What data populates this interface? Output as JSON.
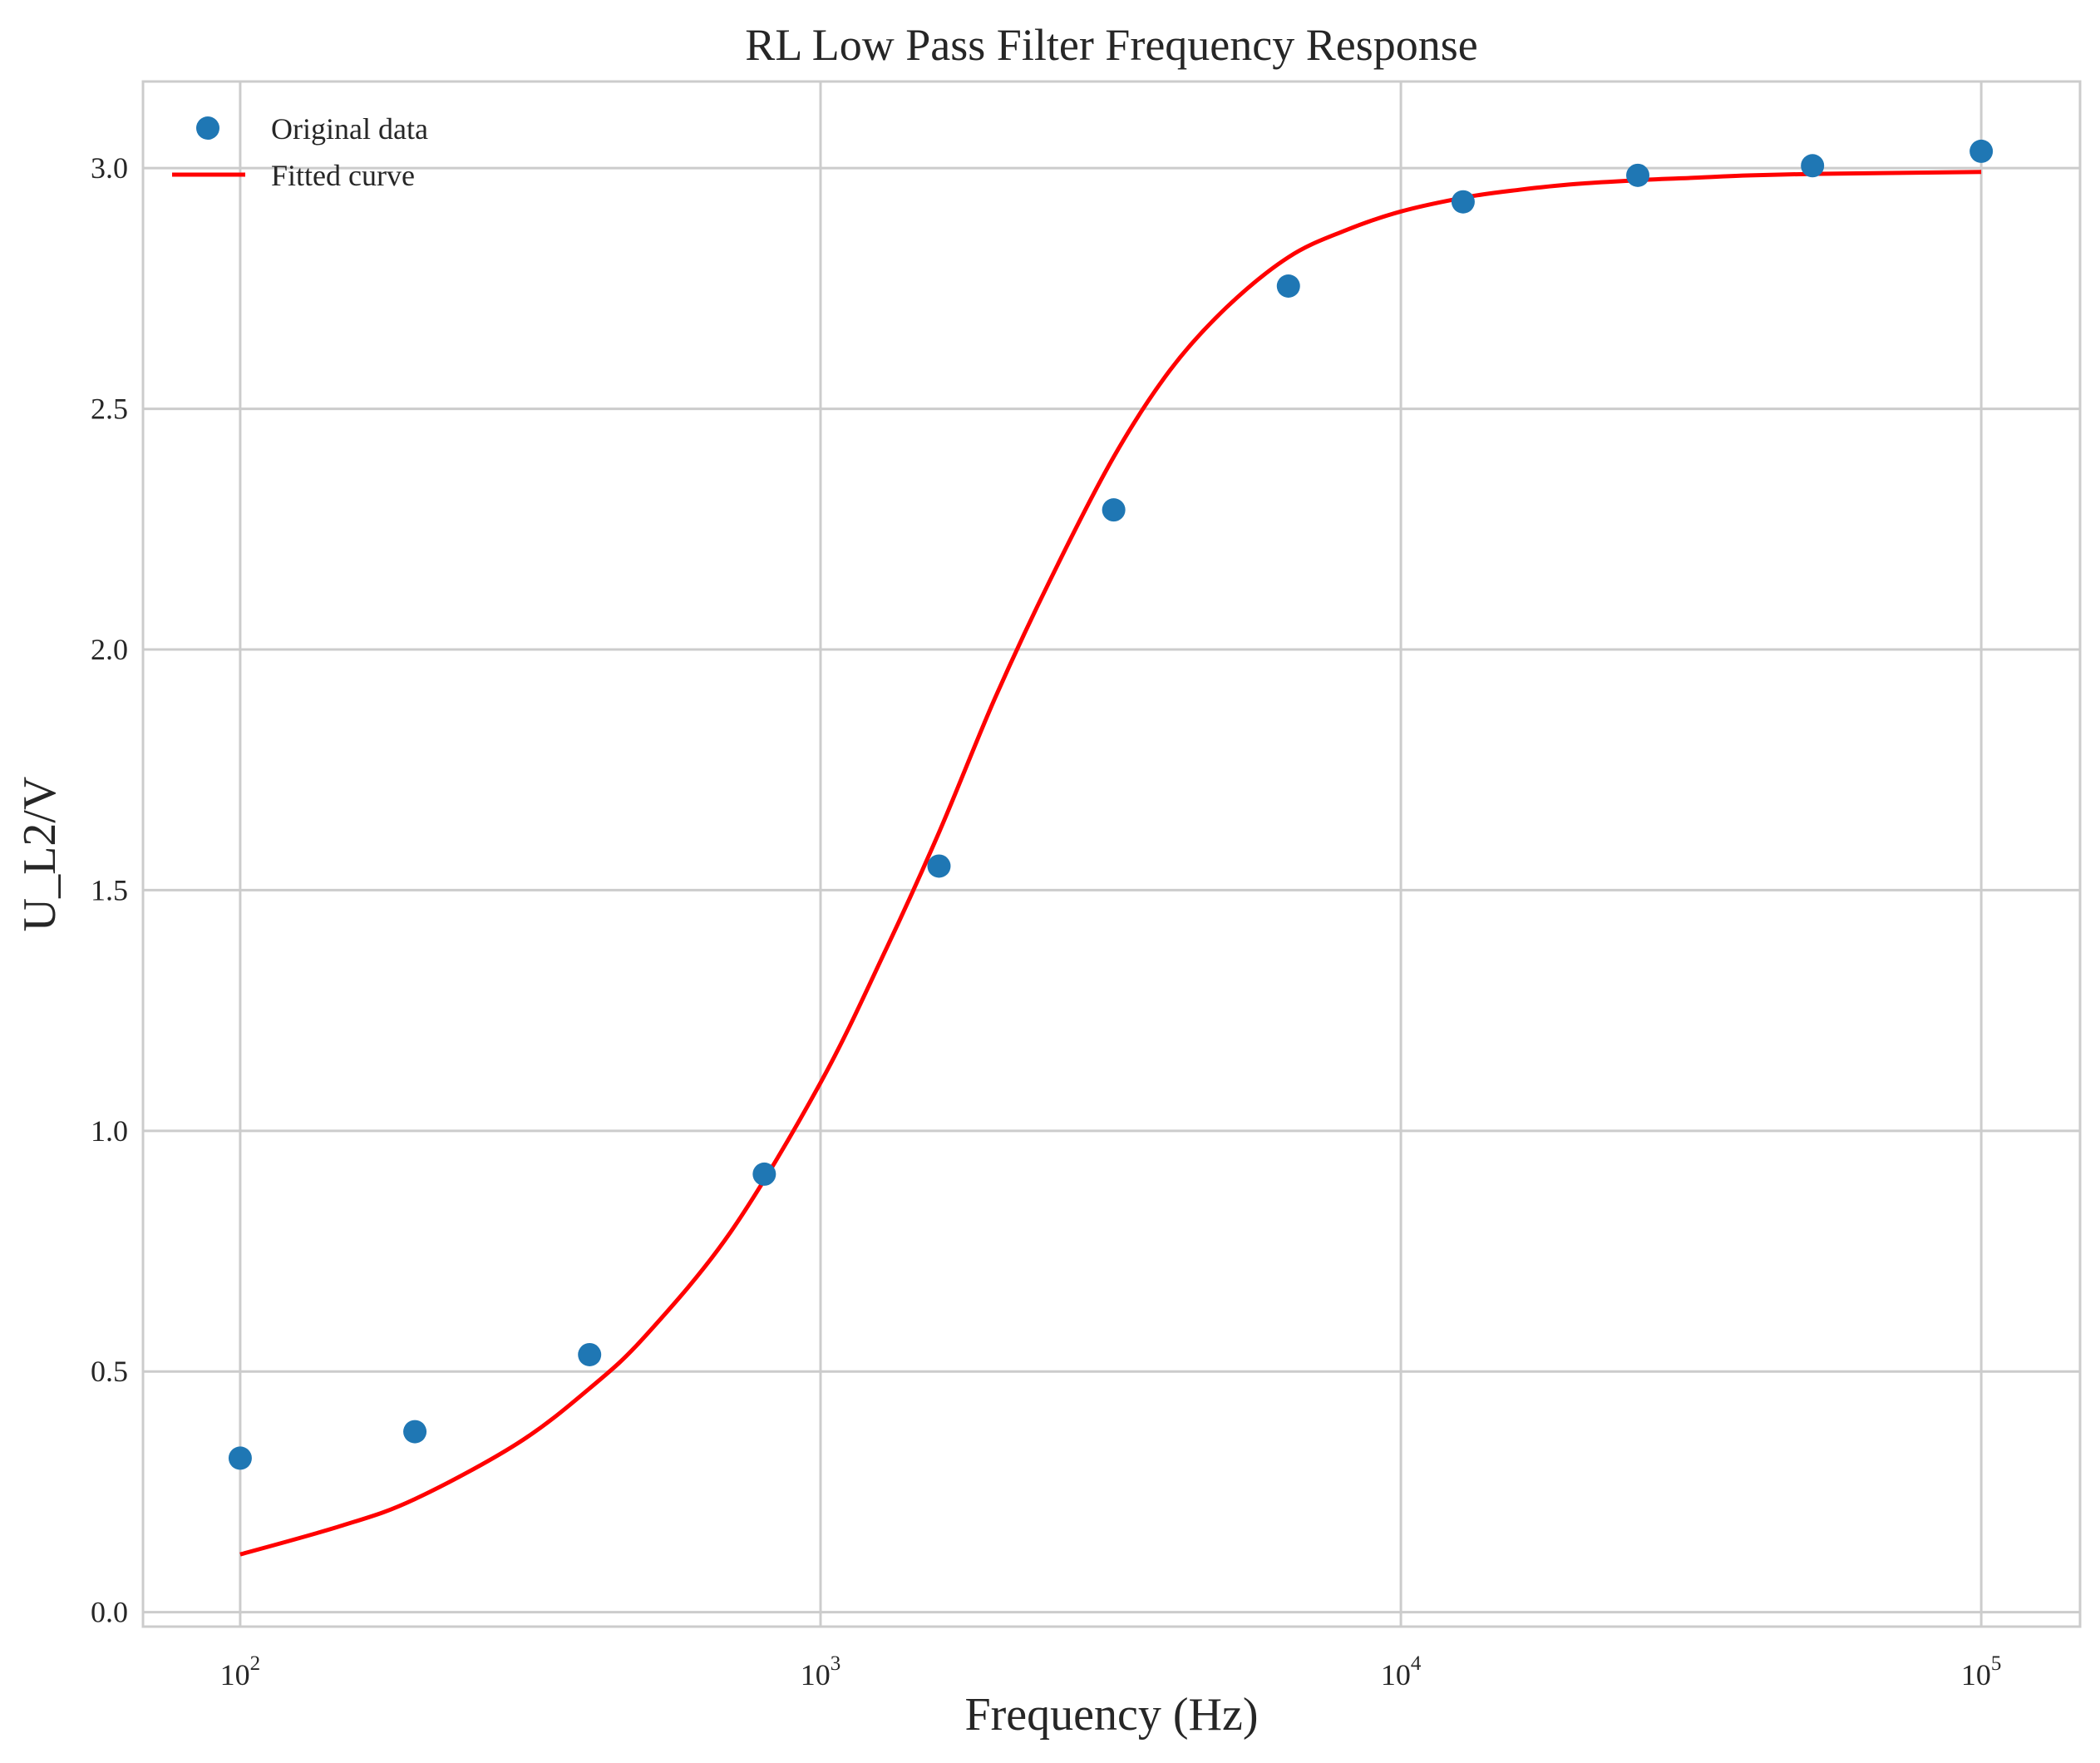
{
  "chart_data": {
    "type": "scatter",
    "title": "RL Low Pass Filter Frequency Response",
    "xlabel": "Frequency (Hz)",
    "ylabel": "U_L2/V",
    "xscale": "log",
    "xlim": [
      68,
      148000
    ],
    "ylim": [
      -0.03,
      3.18
    ],
    "grid": true,
    "legend_position": "upper-left",
    "x_ticks": [
      {
        "value": 100,
        "base": "10",
        "exp": "2"
      },
      {
        "value": 1000,
        "base": "10",
        "exp": "3"
      },
      {
        "value": 10000,
        "base": "10",
        "exp": "4"
      },
      {
        "value": 100000,
        "base": "10",
        "exp": "5"
      }
    ],
    "y_ticks": [
      {
        "value": 0.0,
        "label": "0.0"
      },
      {
        "value": 0.5,
        "label": "0.5"
      },
      {
        "value": 1.0,
        "label": "1.0"
      },
      {
        "value": 1.5,
        "label": "1.5"
      },
      {
        "value": 2.0,
        "label": "2.0"
      },
      {
        "value": 2.5,
        "label": "2.5"
      },
      {
        "value": 3.0,
        "label": "3.0"
      }
    ],
    "series": [
      {
        "name": "Original data",
        "kind": "scatter",
        "color": "#1f77b4",
        "x": [
          100,
          200,
          400,
          800,
          1600,
          3200,
          6400,
          12800,
          25600,
          51200,
          100000
        ],
        "y": [
          0.32,
          0.375,
          0.535,
          0.91,
          1.55,
          2.29,
          2.755,
          2.93,
          2.985,
          3.005,
          3.035
        ]
      },
      {
        "name": "Fitted curve",
        "kind": "line",
        "color": "#ff0000",
        "x": [
          100,
          150,
          200,
          300,
          400,
          500,
          700,
          1000,
          1300,
          1600,
          2000,
          2500,
          3200,
          4000,
          5000,
          6400,
          8000,
          10000,
          13000,
          16000,
          20000,
          25600,
          32000,
          40000,
          51200,
          70000,
          100000
        ],
        "y": [
          0.12,
          0.18,
          0.235,
          0.35,
          0.465,
          0.575,
          0.79,
          1.1,
          1.38,
          1.62,
          1.9,
          2.15,
          2.4,
          2.58,
          2.71,
          2.815,
          2.87,
          2.91,
          2.94,
          2.955,
          2.967,
          2.975,
          2.98,
          2.985,
          2.988,
          2.99,
          2.992
        ]
      }
    ]
  }
}
